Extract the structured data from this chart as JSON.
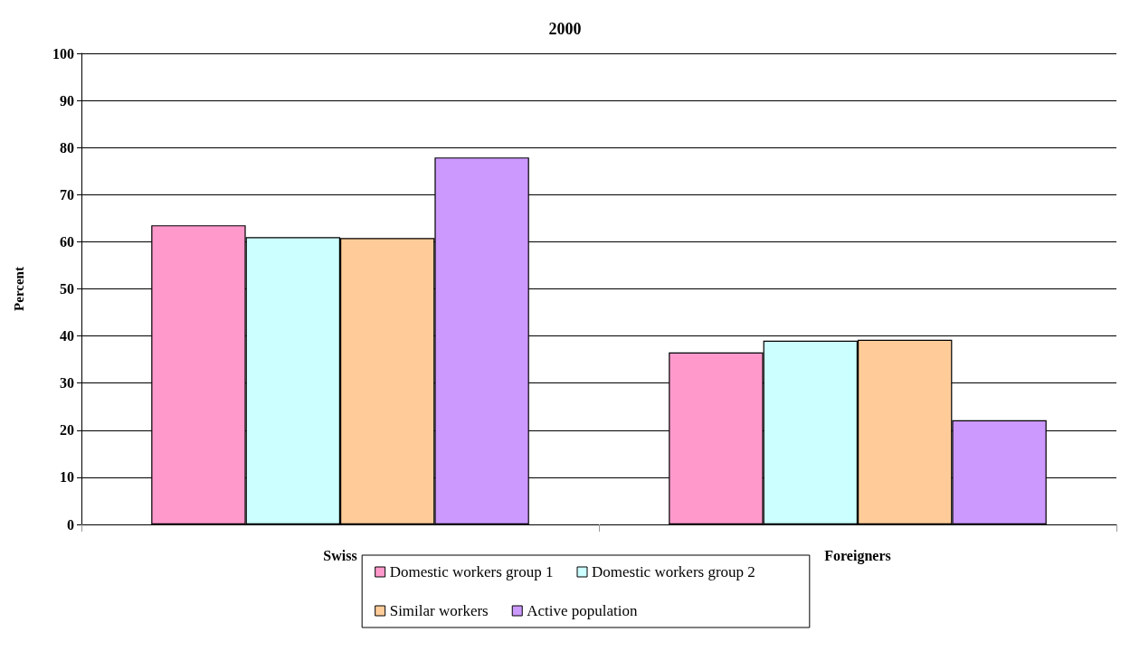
{
  "chart_data": {
    "type": "bar",
    "title": "2000",
    "ylabel": "Percent",
    "categories": [
      "Swiss",
      "Foreigners"
    ],
    "series": [
      {
        "name": "Domestic workers group 1",
        "color": "#ff99cc",
        "values": [
          63.5,
          36.5
        ]
      },
      {
        "name": "Domestic workers group 2",
        "color": "#ccffff",
        "values": [
          61.0,
          39.0
        ]
      },
      {
        "name": "Similar workers",
        "color": "#ffcc99",
        "values": [
          60.8,
          39.2
        ]
      },
      {
        "name": "Active population",
        "color": "#cc99ff",
        "values": [
          77.9,
          22.1
        ]
      }
    ],
    "ylim": [
      0,
      100
    ],
    "yticks": [
      0,
      10,
      20,
      30,
      40,
      50,
      60,
      70,
      80,
      90,
      100
    ],
    "grid": "y",
    "legend": "bottom"
  }
}
